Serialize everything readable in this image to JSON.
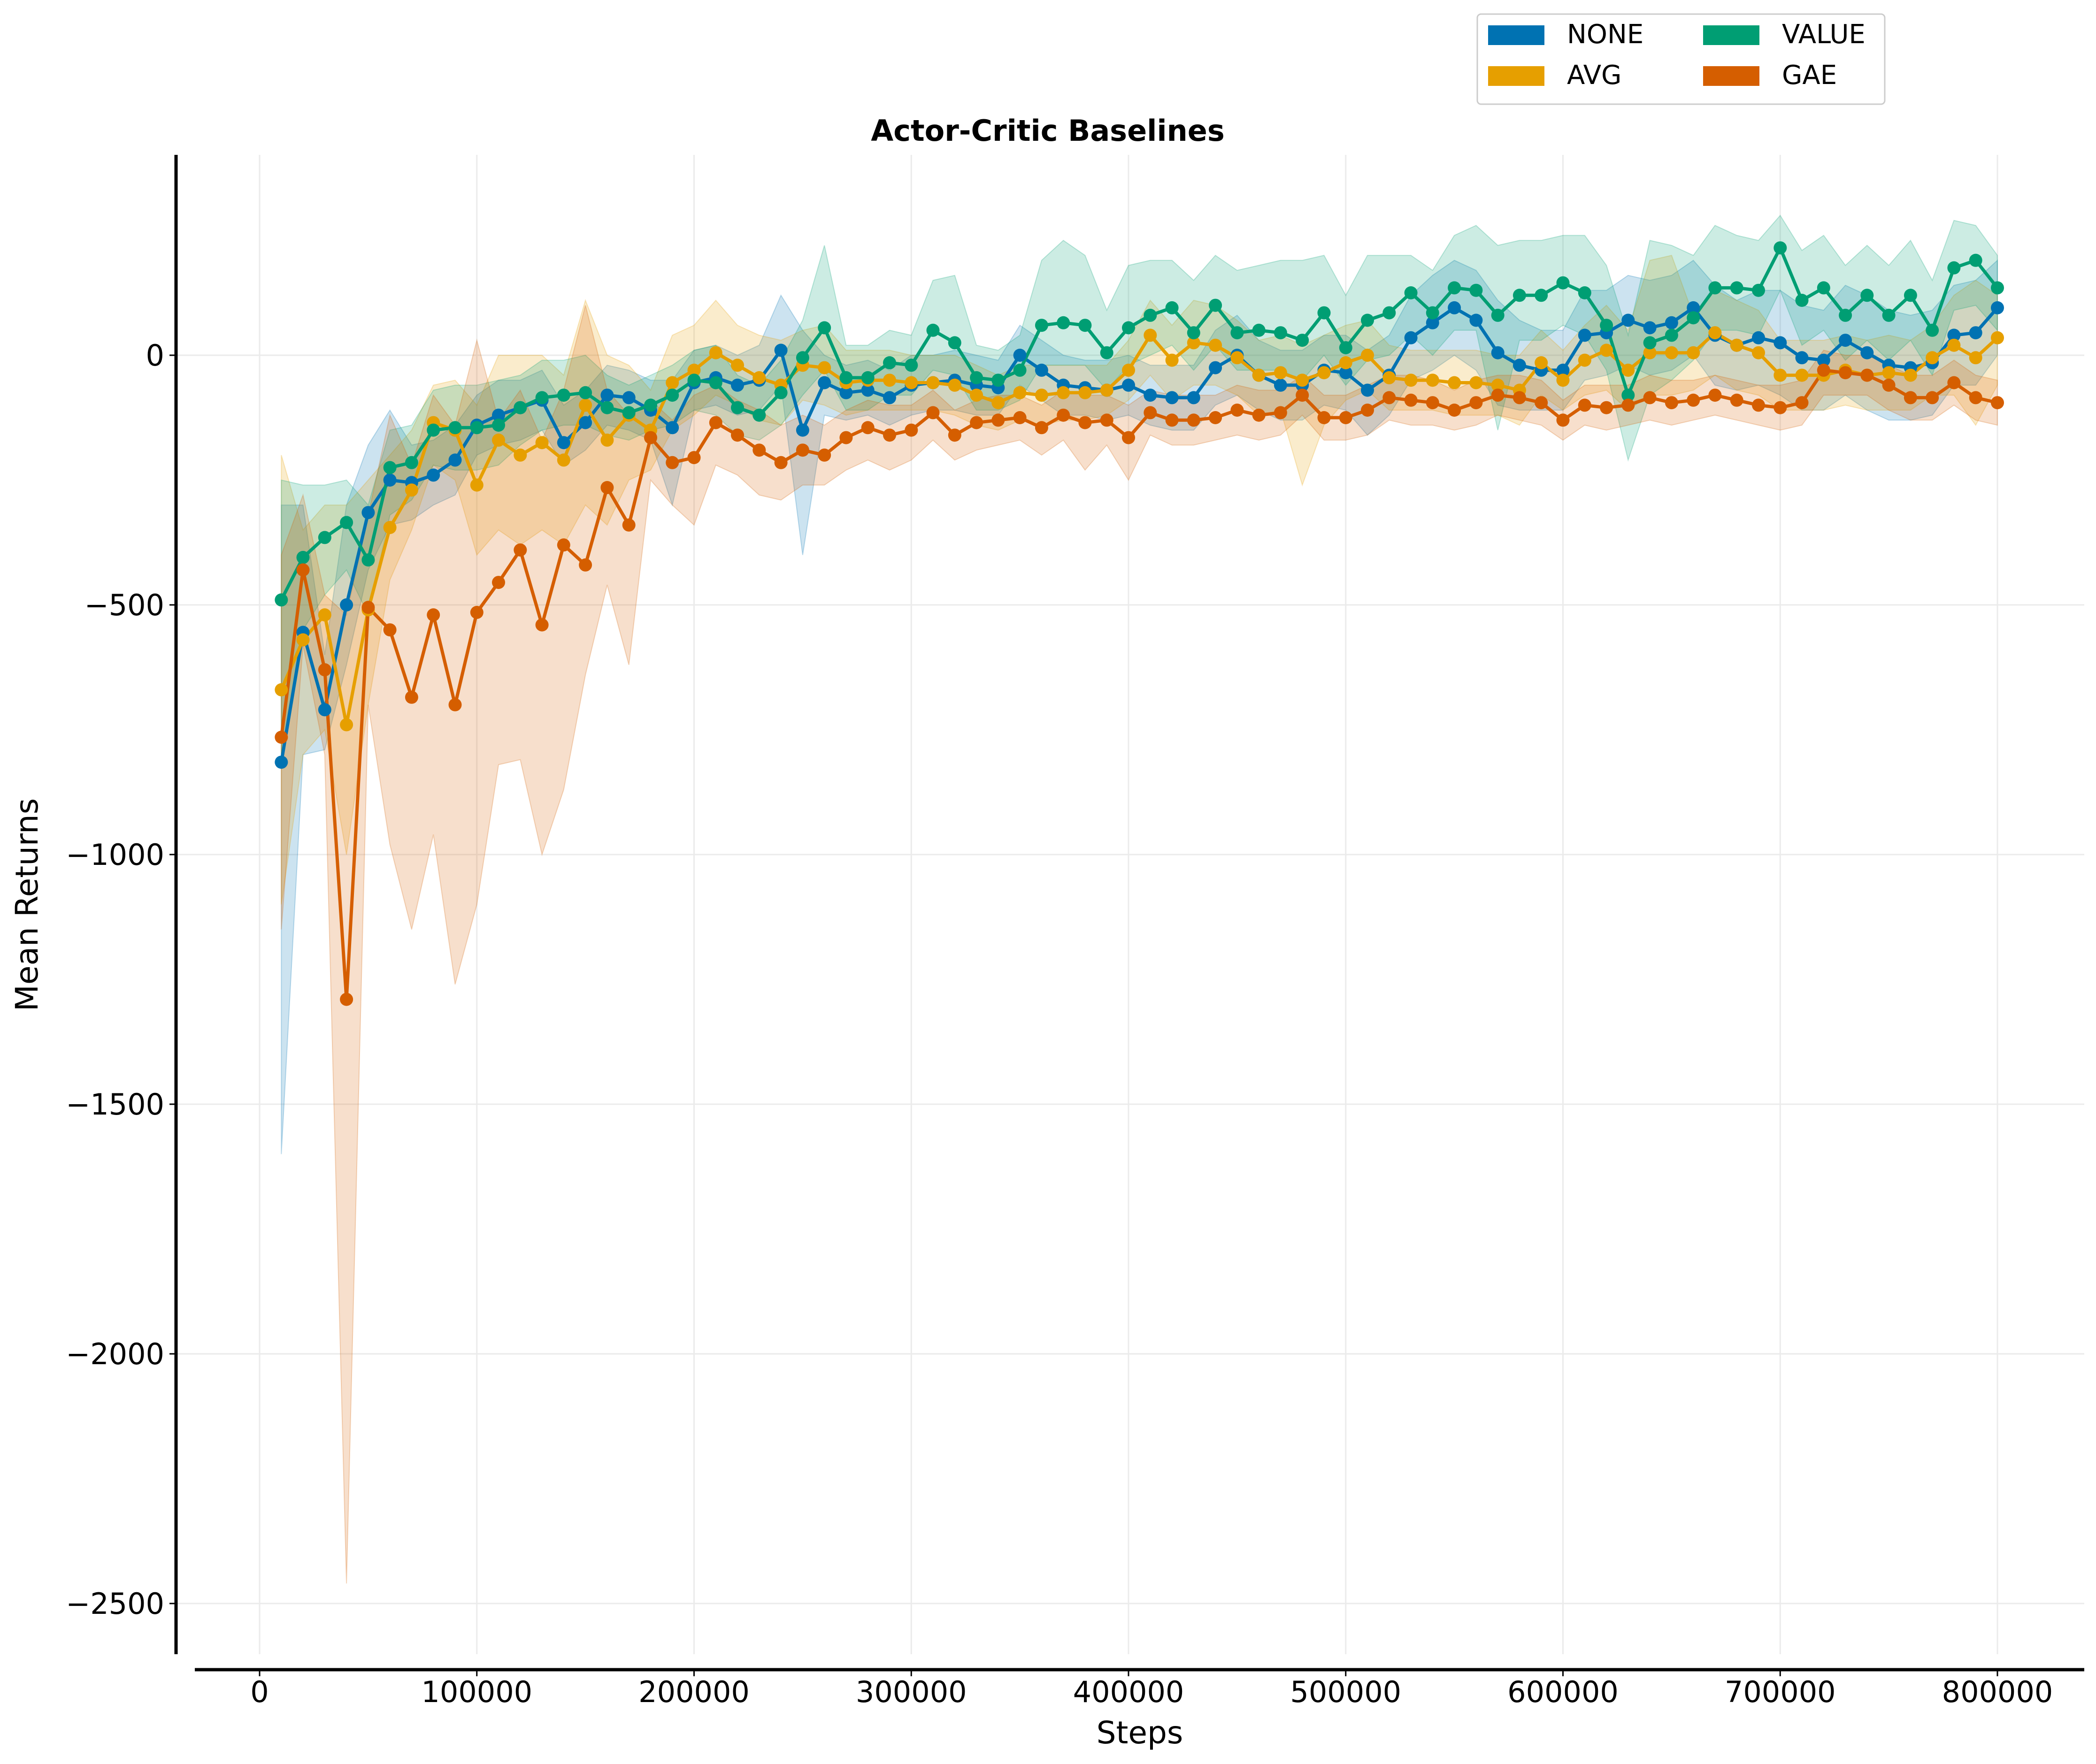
{
  "chart_data": {
    "type": "line",
    "title": "Actor-Critic Baselines",
    "xlabel": "Steps",
    "ylabel": "Mean Returns",
    "xlim": [
      -30000,
      840000
    ],
    "ylim": [
      -2600,
      400
    ],
    "xticks": [
      0,
      100000,
      200000,
      300000,
      400000,
      500000,
      600000,
      700000,
      800000
    ],
    "yticks": [
      0,
      -500,
      -1000,
      -1500,
      -2000,
      -2500
    ],
    "ytick_labels": [
      "0",
      "−500",
      "−1000",
      "−1500",
      "−2000",
      "−2500"
    ],
    "grid": true,
    "legend_position": "top-right, above plot, 2 columns",
    "x": [
      10000,
      20000,
      30000,
      40000,
      50000,
      60000,
      70000,
      80000,
      90000,
      100000,
      110000,
      120000,
      130000,
      140000,
      150000,
      160000,
      170000,
      180000,
      190000,
      200000,
      210000,
      220000,
      230000,
      240000,
      250000,
      260000,
      270000,
      280000,
      290000,
      300000,
      310000,
      320000,
      330000,
      340000,
      350000,
      360000,
      370000,
      380000,
      390000,
      400000,
      410000,
      420000,
      430000,
      440000,
      450000,
      460000,
      470000,
      480000,
      490000,
      500000,
      510000,
      520000,
      530000,
      540000,
      550000,
      560000,
      570000,
      580000,
      590000,
      600000,
      610000,
      620000,
      630000,
      640000,
      650000,
      660000,
      670000,
      680000,
      690000,
      700000,
      710000,
      720000,
      730000,
      740000,
      750000,
      760000,
      770000,
      780000,
      790000,
      800000
    ],
    "series": [
      {
        "name": "NONE",
        "color": "#0072b2",
        "values": [
          -815,
          -555,
          -710,
          -500,
          -315,
          -250,
          -255,
          -240,
          -210,
          -140,
          -120,
          -105,
          -90,
          -175,
          -135,
          -80,
          -85,
          -110,
          -145,
          -55,
          -45,
          -60,
          -50,
          10,
          -150,
          -55,
          -75,
          -70,
          -85,
          -60,
          -55,
          -50,
          -60,
          -65,
          0,
          -30,
          -60,
          -65,
          -70,
          -60,
          -80,
          -85,
          -85,
          -25,
          0,
          -40,
          -60,
          -60,
          -30,
          -35,
          -70,
          -40,
          35,
          65,
          95,
          70,
          5,
          -20,
          -30,
          -30,
          40,
          45,
          70,
          55,
          65,
          95,
          40,
          20,
          35,
          25,
          -5,
          -10,
          30,
          5,
          -20,
          -25,
          -15,
          40,
          45,
          95
        ],
        "lower": [
          -1600,
          -800,
          -790,
          -620,
          -430,
          -340,
          -330,
          -300,
          -280,
          -200,
          -180,
          -170,
          -150,
          -220,
          -190,
          -140,
          -150,
          -170,
          -300,
          -110,
          -100,
          -120,
          -110,
          -60,
          -400,
          -120,
          -130,
          -120,
          -140,
          -120,
          -110,
          -110,
          -120,
          -120,
          -60,
          -90,
          -120,
          -120,
          -130,
          -120,
          -140,
          -150,
          -150,
          -100,
          -80,
          -110,
          -130,
          -130,
          -100,
          -110,
          -160,
          -120,
          -50,
          -30,
          0,
          -30,
          -100,
          -110,
          -110,
          -110,
          -50,
          -40,
          -20,
          -40,
          -30,
          0,
          -60,
          -70,
          -60,
          -80,
          -110,
          -110,
          -80,
          -110,
          -130,
          -130,
          -120,
          -60,
          -60,
          0
        ],
        "upper": [
          -300,
          -300,
          -600,
          -300,
          -180,
          -110,
          -180,
          -170,
          -140,
          -80,
          -50,
          -50,
          -30,
          -100,
          -70,
          -20,
          -30,
          -50,
          -50,
          10,
          20,
          0,
          20,
          120,
          50,
          0,
          -20,
          -10,
          -30,
          0,
          0,
          10,
          0,
          -10,
          60,
          30,
          0,
          -10,
          -10,
          0,
          -20,
          -20,
          -20,
          50,
          80,
          30,
          10,
          10,
          40,
          40,
          10,
          40,
          120,
          160,
          190,
          170,
          110,
          70,
          50,
          50,
          130,
          130,
          160,
          150,
          160,
          190,
          140,
          110,
          130,
          130,
          100,
          90,
          140,
          120,
          90,
          80,
          90,
          140,
          150,
          190
        ]
      },
      {
        "name": "AVG",
        "color": "#e69f00",
        "values": [
          -670,
          -570,
          -520,
          -740,
          -510,
          -345,
          -270,
          -135,
          -150,
          -260,
          -170,
          -200,
          -175,
          -210,
          -100,
          -170,
          -120,
          -150,
          -55,
          -30,
          5,
          -20,
          -45,
          -60,
          -20,
          -25,
          -55,
          -50,
          -50,
          -55,
          -55,
          -60,
          -80,
          -95,
          -75,
          -80,
          -75,
          -75,
          -70,
          -30,
          40,
          -10,
          25,
          20,
          -5,
          -40,
          -35,
          -50,
          -35,
          -15,
          0,
          -45,
          -50,
          -50,
          -55,
          -55,
          -60,
          -70,
          -15,
          -50,
          -10,
          10,
          -30,
          5,
          5,
          5,
          45,
          20,
          5,
          -40,
          -40,
          -40,
          -30,
          -40,
          -35,
          -40,
          -5,
          20,
          -5,
          35
        ],
        "lower": [
          -1100,
          -800,
          -750,
          -1000,
          -700,
          -450,
          -350,
          -220,
          -250,
          -400,
          -350,
          -380,
          -350,
          -380,
          -300,
          -340,
          -250,
          -230,
          -150,
          -120,
          -80,
          -100,
          -130,
          -140,
          -90,
          -100,
          -120,
          -110,
          -110,
          -110,
          -110,
          -120,
          -140,
          -150,
          -130,
          -140,
          -130,
          -130,
          -120,
          -90,
          -40,
          -90,
          -60,
          -60,
          -80,
          -120,
          -110,
          -260,
          -140,
          -90,
          -70,
          -110,
          -110,
          -110,
          -120,
          -120,
          -120,
          -140,
          -80,
          -110,
          -80,
          -70,
          -110,
          -80,
          -80,
          -70,
          -40,
          -70,
          -80,
          -110,
          -110,
          -110,
          -100,
          -110,
          -110,
          -110,
          -80,
          -80,
          -140,
          -60
        ],
        "upper": [
          -200,
          -350,
          -300,
          -300,
          -250,
          -200,
          -150,
          -60,
          -50,
          -100,
          0,
          0,
          0,
          -40,
          110,
          0,
          -20,
          -70,
          40,
          60,
          110,
          60,
          40,
          30,
          50,
          60,
          10,
          10,
          10,
          0,
          0,
          0,
          -20,
          -40,
          -20,
          -20,
          -20,
          -20,
          -20,
          30,
          110,
          60,
          110,
          100,
          70,
          30,
          40,
          20,
          40,
          60,
          70,
          20,
          10,
          10,
          10,
          10,
          0,
          0,
          50,
          10,
          60,
          100,
          50,
          190,
          200,
          80,
          130,
          110,
          90,
          30,
          30,
          30,
          40,
          30,
          40,
          30,
          60,
          120,
          150,
          120
        ]
      },
      {
        "name": "VALUE",
        "color": "#009e73",
        "values": [
          -490,
          -405,
          -365,
          -335,
          -410,
          -225,
          -215,
          -150,
          -145,
          -145,
          -140,
          -105,
          -85,
          -80,
          -75,
          -105,
          -115,
          -100,
          -80,
          -50,
          -55,
          -105,
          -120,
          -75,
          -5,
          55,
          -45,
          -45,
          -15,
          -20,
          50,
          25,
          -45,
          -50,
          -30,
          60,
          65,
          60,
          5,
          55,
          80,
          95,
          45,
          100,
          45,
          50,
          45,
          30,
          85,
          15,
          70,
          85,
          125,
          85,
          135,
          130,
          80,
          120,
          120,
          145,
          125,
          60,
          -80,
          25,
          40,
          75,
          135,
          135,
          130,
          215,
          110,
          135,
          80,
          120,
          80,
          120,
          50,
          175,
          190,
          135
        ],
        "lower": [
          -800,
          -550,
          -480,
          -430,
          -520,
          -320,
          -290,
          -220,
          -230,
          -230,
          -220,
          -180,
          -150,
          -140,
          -140,
          -160,
          -170,
          -150,
          -140,
          -110,
          -120,
          -160,
          -170,
          -140,
          -80,
          -30,
          -110,
          -110,
          -80,
          -80,
          -30,
          -40,
          -110,
          -110,
          -90,
          -20,
          -20,
          -20,
          -70,
          -20,
          0,
          20,
          -30,
          20,
          -30,
          -30,
          -30,
          -50,
          0,
          -60,
          -10,
          0,
          40,
          0,
          50,
          50,
          -150,
          30,
          30,
          60,
          40,
          -30,
          -210,
          -80,
          -50,
          -10,
          50,
          50,
          40,
          130,
          20,
          50,
          -10,
          30,
          -10,
          30,
          -40,
          90,
          100,
          50
        ],
        "upper": [
          -250,
          -260,
          -260,
          -250,
          -300,
          -150,
          -140,
          -70,
          -60,
          -60,
          -50,
          -40,
          -10,
          -10,
          0,
          -40,
          -60,
          -40,
          -20,
          10,
          20,
          -40,
          -60,
          -10,
          70,
          220,
          20,
          20,
          50,
          40,
          150,
          160,
          20,
          10,
          40,
          190,
          230,
          200,
          90,
          180,
          190,
          190,
          150,
          200,
          170,
          180,
          190,
          190,
          200,
          120,
          200,
          200,
          200,
          170,
          240,
          260,
          220,
          230,
          230,
          240,
          240,
          180,
          40,
          230,
          220,
          200,
          260,
          240,
          230,
          280,
          210,
          240,
          180,
          220,
          180,
          230,
          150,
          270,
          260,
          200
        ]
      },
      {
        "name": "GAE",
        "color": "#d55e00",
        "values": [
          -765,
          -430,
          -630,
          -1290,
          -505,
          -550,
          -685,
          -520,
          -700,
          -515,
          -455,
          -390,
          -540,
          -380,
          -420,
          -265,
          -340,
          -165,
          -215,
          -205,
          -135,
          -160,
          -190,
          -215,
          -190,
          -200,
          -165,
          -145,
          -160,
          -150,
          -115,
          -160,
          -135,
          -130,
          -125,
          -145,
          -120,
          -135,
          -130,
          -165,
          -115,
          -130,
          -130,
          -125,
          -110,
          -120,
          -115,
          -80,
          -125,
          -125,
          -110,
          -85,
          -90,
          -95,
          -110,
          -95,
          -80,
          -85,
          -95,
          -130,
          -100,
          -105,
          -100,
          -85,
          -95,
          -90,
          -80,
          -90,
          -100,
          -105,
          -95,
          -30,
          -35,
          -40,
          -60,
          -85,
          -85,
          -55,
          -85,
          -95
        ],
        "lower": [
          -1150,
          -580,
          -800,
          -2460,
          -700,
          -980,
          -1150,
          -960,
          -1260,
          -1100,
          -820,
          -810,
          -1000,
          -870,
          -640,
          -460,
          -620,
          -250,
          -300,
          -340,
          -220,
          -240,
          -280,
          -290,
          -260,
          -260,
          -230,
          -210,
          -230,
          -210,
          -170,
          -210,
          -190,
          -180,
          -170,
          -200,
          -170,
          -230,
          -180,
          -250,
          -160,
          -180,
          -180,
          -170,
          -160,
          -170,
          -160,
          -120,
          -170,
          -170,
          -160,
          -130,
          -140,
          -140,
          -150,
          -140,
          -120,
          -130,
          -140,
          -170,
          -140,
          -150,
          -140,
          -130,
          -140,
          -130,
          -120,
          -130,
          -140,
          -150,
          -140,
          -80,
          -80,
          -80,
          -110,
          -130,
          -130,
          -100,
          -130,
          -140
        ],
        "upper": [
          -400,
          -280,
          -480,
          -520,
          -320,
          -120,
          -220,
          -80,
          -140,
          30,
          -130,
          -70,
          -170,
          -70,
          100,
          -70,
          -120,
          -90,
          -130,
          -80,
          -60,
          -90,
          -110,
          -140,
          -120,
          -140,
          -110,
          -90,
          -100,
          -100,
          -70,
          -110,
          -90,
          -80,
          -80,
          -100,
          -70,
          -80,
          -80,
          -100,
          -70,
          -80,
          -80,
          -80,
          -60,
          -70,
          -70,
          -40,
          -80,
          -80,
          -60,
          -40,
          -40,
          -50,
          -70,
          -50,
          -40,
          -40,
          -50,
          -90,
          -60,
          -60,
          -60,
          -40,
          -50,
          -50,
          -40,
          -50,
          -60,
          -60,
          -50,
          10,
          0,
          0,
          -20,
          -40,
          -40,
          -10,
          -40,
          -50
        ]
      }
    ]
  }
}
